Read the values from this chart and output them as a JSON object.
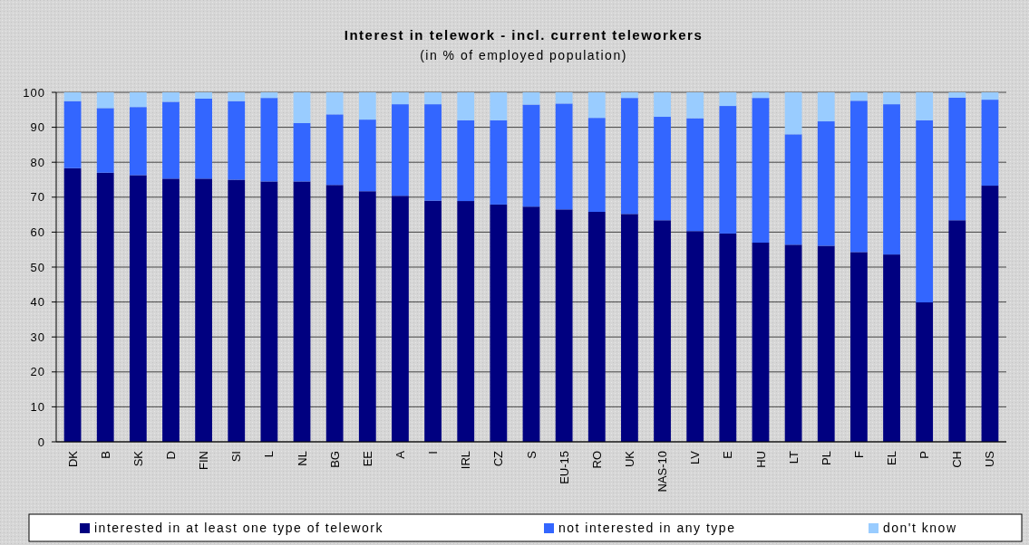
{
  "chart_data": {
    "type": "bar",
    "stacked": true,
    "title": "Interest in telework - incl. current teleworkers",
    "subtitle": "(in % of employed population)",
    "categories": [
      "DK",
      "B",
      "SK",
      "D",
      "FIN",
      "SI",
      "L",
      "NL",
      "BG",
      "EE",
      "A",
      "I",
      "IRL",
      "CZ",
      "S",
      "EU-15",
      "RO",
      "UK",
      "NAS-10",
      "LV",
      "E",
      "HU",
      "LT",
      "PL",
      "F",
      "EL",
      "P",
      "CH",
      "US"
    ],
    "series": [
      {
        "name": "interested in at least one type of telework",
        "color": "#000080",
        "values": [
          78.3,
          77,
          76.3,
          75.3,
          75.3,
          75,
          74.5,
          74.5,
          73.5,
          71.7,
          70.4,
          69,
          68.9,
          67.9,
          67.3,
          66.5,
          65.8,
          65.2,
          63.4,
          60.3,
          59.6,
          57,
          56.4,
          56.1,
          54.3,
          53.6,
          39.9,
          63.4,
          73.3
        ]
      },
      {
        "name": "not interested in any type",
        "color": "#3366ff",
        "values": [
          19.2,
          18.5,
          19.5,
          22,
          22.9,
          22.5,
          23.9,
          16.7,
          20.2,
          20.5,
          26.2,
          27.6,
          23.1,
          24.1,
          29.2,
          30.3,
          26.9,
          33.2,
          29.6,
          32.3,
          36.5,
          41.4,
          31.6,
          35.6,
          43.3,
          43,
          52.1,
          35.1,
          24.6
        ]
      },
      {
        "name": "don't know",
        "color": "#99ccff",
        "values": [
          2.5,
          4.5,
          4.2,
          2.7,
          1.8,
          2.5,
          1.6,
          8.8,
          6.3,
          7.8,
          3.4,
          3.4,
          8,
          8,
          3.5,
          3.2,
          7.3,
          1.6,
          7,
          7.4,
          3.9,
          1.6,
          12,
          8.3,
          2.4,
          3.4,
          8,
          1.5,
          2.1
        ]
      }
    ],
    "ylim": [
      0,
      100
    ],
    "yticks": [
      0,
      10,
      20,
      30,
      40,
      50,
      60,
      70,
      80,
      90,
      100
    ],
    "grid": "y",
    "legend": "bottom"
  }
}
